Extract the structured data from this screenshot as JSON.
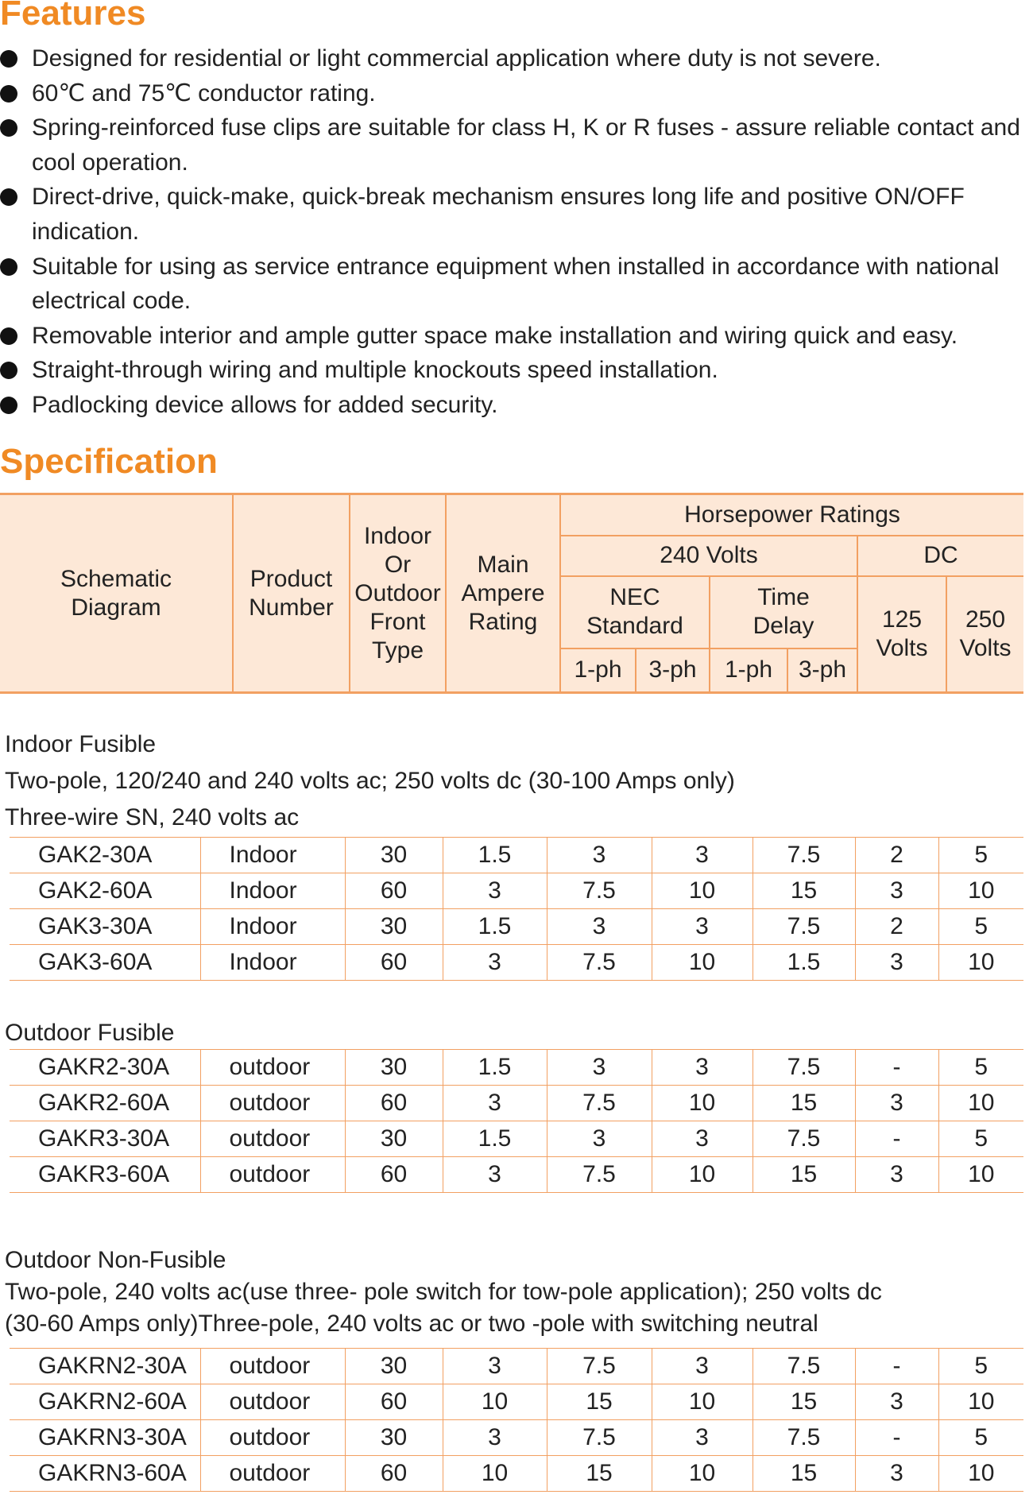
{
  "features": {
    "title": "Features",
    "items": [
      "Designed for residential or light commercial application where duty is not severe.",
      "60℃ and 75℃ conductor rating.",
      "Spring-reinforced fuse clips are suitable for class H, K or R fuses - assure reliable contact and cool operation.",
      "Direct-drive, quick-make, quick-break mechanism ensures long life and positive ON/OFF indication.",
      "Suitable for using as service entrance equipment when installed in accordance with national electrical code.",
      "Removable interior and ample gutter space make installation and wiring quick and easy.",
      "Straight-through wiring and multiple knockouts speed installation.",
      "Padlocking device allows for added security."
    ]
  },
  "specification": {
    "title": "Specification",
    "header": {
      "schematic_diagram": [
        "Schematic",
        "Diagram"
      ],
      "product_number": [
        "Product",
        "Number"
      ],
      "front_type": [
        "Indoor",
        "Or",
        "Outdoor",
        "Front",
        "Type"
      ],
      "main_ampere_rating": [
        "Main",
        "Ampere",
        "Rating"
      ],
      "horsepower_ratings": "Horsepower Ratings",
      "ac_240_volts": "240 Volts",
      "dc": "DC",
      "nec_standard": [
        "NEC",
        "Standard"
      ],
      "time_delay": [
        "Time",
        "Delay"
      ],
      "phases": [
        "1-ph",
        "3-ph",
        "1-ph",
        "3-ph"
      ],
      "dc_125_volts": [
        "125",
        "Volts"
      ],
      "dc_250_volts": [
        "250",
        "Volts"
      ]
    },
    "sections": [
      {
        "lines": [
          "Indoor Fusible",
          "Two-pole, 120/240 and 240 volts ac; 250 volts dc (30-100 Amps only)",
          "Three-wire SN, 240 volts ac"
        ],
        "rows": [
          [
            "GAK2-30A",
            "Indoor",
            30,
            1.5,
            3,
            3,
            7.5,
            2,
            5
          ],
          [
            "GAK2-60A",
            "Indoor",
            60,
            3,
            7.5,
            10,
            15,
            3,
            10
          ],
          [
            "GAK3-30A",
            "Indoor",
            30,
            1.5,
            3,
            3,
            7.5,
            2,
            5
          ],
          [
            "GAK3-60A",
            "Indoor",
            60,
            3,
            7.5,
            10,
            1.5,
            3,
            10
          ]
        ]
      },
      {
        "lines": [
          "Outdoor Fusible"
        ],
        "rows": [
          [
            "GAKR2-30A",
            "outdoor",
            30,
            1.5,
            3,
            3,
            7.5,
            "-",
            5
          ],
          [
            "GAKR2-60A",
            "outdoor",
            60,
            3,
            7.5,
            10,
            15,
            3,
            10
          ],
          [
            "GAKR3-30A",
            "outdoor",
            30,
            1.5,
            3,
            3,
            7.5,
            "-",
            5
          ],
          [
            "GAKR3-60A",
            "outdoor",
            60,
            3,
            7.5,
            10,
            15,
            3,
            10
          ]
        ]
      },
      {
        "lines": [
          "Outdoor Non-Fusible",
          "Two-pole, 240 volts ac(use three- pole switch for tow-pole application); 250 volts dc",
          "(30-60 Amps only)Three-pole,  240 volts ac or two -pole with switching neutral"
        ],
        "rows": [
          [
            "GAKRN2-30A",
            "outdoor",
            30,
            3,
            7.5,
            3,
            7.5,
            "-",
            5
          ],
          [
            "GAKRN2-60A",
            "outdoor",
            60,
            10,
            15,
            10,
            15,
            3,
            10
          ],
          [
            "GAKRN3-30A",
            "outdoor",
            30,
            3,
            7.5,
            3,
            7.5,
            "-",
            5
          ],
          [
            "GAKRN3-60A",
            "outdoor",
            60,
            10,
            15,
            10,
            15,
            3,
            10
          ]
        ]
      }
    ]
  }
}
